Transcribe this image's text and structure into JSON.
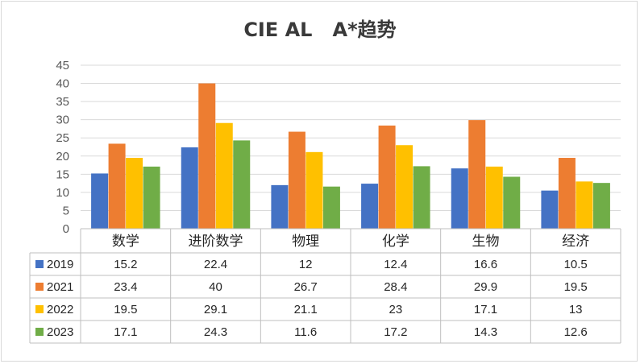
{
  "chart_data": {
    "type": "bar",
    "title": "CIE AL   A*趋势",
    "categories": [
      "数学",
      "进阶数学",
      "物理",
      "化学",
      "生物",
      "经济"
    ],
    "series": [
      {
        "name": "2019",
        "color": "#4472c4",
        "values": [
          15.2,
          22.4,
          12,
          12.4,
          16.6,
          10.5
        ]
      },
      {
        "name": "2021",
        "color": "#ed7d31",
        "values": [
          23.4,
          40,
          26.7,
          28.4,
          29.9,
          19.5
        ]
      },
      {
        "name": "2022",
        "color": "#ffc000",
        "values": [
          19.5,
          29.1,
          21.1,
          23,
          17.1,
          13
        ]
      },
      {
        "name": "2023",
        "color": "#70ad47",
        "values": [
          17.1,
          24.3,
          11.6,
          17.2,
          14.3,
          12.6
        ]
      }
    ],
    "ylim": [
      0,
      45
    ],
    "yticks": [
      0,
      5,
      10,
      15,
      20,
      25,
      30,
      35,
      40,
      45
    ],
    "grid": true,
    "data_table": true
  }
}
